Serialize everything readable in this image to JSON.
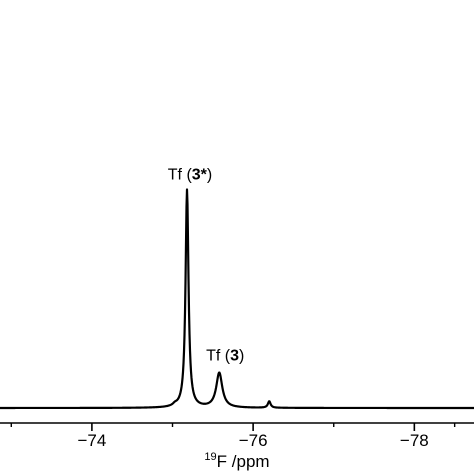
{
  "chart_data": {
    "type": "line",
    "xlabel_sup": "19",
    "xlabel_main": "F /ppm",
    "xlim": [
      -72.86,
      -78.74
    ],
    "x_reversed": true,
    "ylim": [
      0,
      1
    ],
    "grid": false,
    "x_ticks": [
      -74,
      -76,
      -78
    ],
    "x_tick_labels": [
      "−74",
      "−76",
      "−78"
    ],
    "minor_ticks": [
      -73,
      -75,
      -77,
      -78.5
    ],
    "color": "#000000",
    "peaks": [
      {
        "center": -75.18,
        "height": 1.0,
        "width": 0.022,
        "label_prefix": "Tf (",
        "label_bold": "3*",
        "label_suffix": ")"
      },
      {
        "center": -75.58,
        "height": 0.16,
        "width": 0.045,
        "label_prefix": "Tf (",
        "label_bold": "3",
        "label_suffix": ")"
      },
      {
        "center": -76.2,
        "height": 0.03,
        "width": 0.02
      },
      {
        "center": -75.03,
        "height": 0.008,
        "width": 0.03
      }
    ]
  }
}
